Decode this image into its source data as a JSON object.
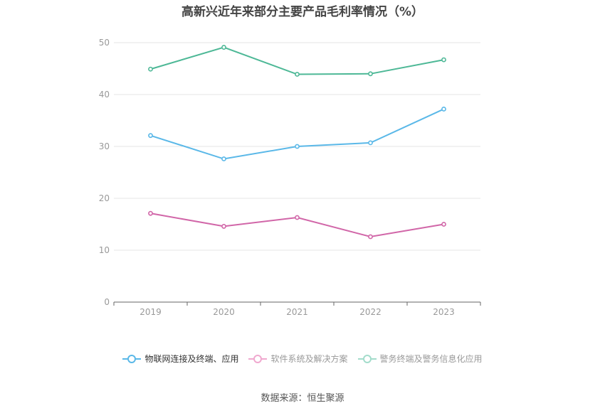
{
  "chart_data": {
    "type": "line",
    "title": "高新兴近年来部分主要产品毛利率情况（%）",
    "categories": [
      "2019",
      "2020",
      "2021",
      "2022",
      "2023"
    ],
    "ylim": [
      0,
      50
    ],
    "yticks": [
      "0",
      "10",
      "20",
      "30",
      "40",
      "50"
    ],
    "grid": true,
    "legend_position": "bottom",
    "series": [
      {
        "name": "物联网连接及终端、应用",
        "values": [
          32.1,
          27.6,
          30.0,
          30.7,
          37.2
        ],
        "color": "#5ab8e8",
        "active": true
      },
      {
        "name": "软件系统及解决方案",
        "values": [
          17.1,
          14.6,
          16.3,
          12.6,
          15.0
        ],
        "color": "#d166a8",
        "active": false,
        "legend_color": "#f0a8cf"
      },
      {
        "name": "警务终端及警务信息化应用",
        "values": [
          44.9,
          49.1,
          43.9,
          44.0,
          46.7
        ],
        "color": "#4db896",
        "active": false,
        "legend_color": "#a3dccb"
      }
    ]
  },
  "source": "数据来源：恒生聚源"
}
